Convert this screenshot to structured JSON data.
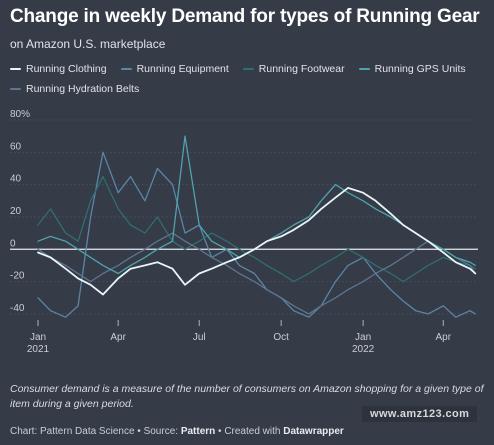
{
  "title": "Change in weekly Demand for types of Running Gear",
  "subtitle": "on Amazon U.S. marketplace",
  "note": "Consumer demand is a measure of the number of consumers on Amazon shopping for a given type of item during a given period.",
  "footer": {
    "chart_prefix": "Chart: Pattern Data Science • Source: ",
    "source": "Pattern",
    "created_prefix": " • Created with ",
    "tool": "Datawrapper"
  },
  "watermark": "www.amz123.com",
  "chart_data": {
    "type": "line",
    "ylim": [
      -45,
      80
    ],
    "y_ticks": [
      {
        "value": 80,
        "label": "80%"
      },
      {
        "value": 60,
        "label": "60"
      },
      {
        "value": 40,
        "label": "40"
      },
      {
        "value": 20,
        "label": "20"
      },
      {
        "value": 0,
        "label": "0"
      },
      {
        "value": -20,
        "label": "-20"
      },
      {
        "value": -40,
        "label": "-40"
      }
    ],
    "x_range": [
      "2021-01-01",
      "2022-05-10"
    ],
    "x_ticks": [
      {
        "date": "2021-01-01",
        "label": "Jan",
        "sublabel": "2021"
      },
      {
        "date": "2021-04-01",
        "label": "Apr",
        "sublabel": ""
      },
      {
        "date": "2021-07-01",
        "label": "Jul",
        "sublabel": ""
      },
      {
        "date": "2021-10-01",
        "label": "Oct",
        "sublabel": ""
      },
      {
        "date": "2022-01-01",
        "label": "Jan",
        "sublabel": "2022"
      },
      {
        "date": "2022-04-01",
        "label": "Apr",
        "sublabel": ""
      }
    ],
    "series": [
      {
        "name": "Running Clothing",
        "color": "#e8f6fb",
        "points": [
          [
            "2021-01-01",
            -2
          ],
          [
            "2021-01-15",
            -5
          ],
          [
            "2021-02-01",
            -12
          ],
          [
            "2021-02-15",
            -18
          ],
          [
            "2021-03-01",
            -22
          ],
          [
            "2021-03-15",
            -28
          ],
          [
            "2021-04-01",
            -18
          ],
          [
            "2021-04-15",
            -12
          ],
          [
            "2021-05-01",
            -10
          ],
          [
            "2021-05-15",
            -8
          ],
          [
            "2021-06-01",
            -12
          ],
          [
            "2021-06-15",
            -22
          ],
          [
            "2021-07-01",
            -15
          ],
          [
            "2021-07-15",
            -12
          ],
          [
            "2021-08-01",
            -8
          ],
          [
            "2021-08-15",
            -5
          ],
          [
            "2021-09-01",
            0
          ],
          [
            "2021-09-15",
            5
          ],
          [
            "2021-10-01",
            8
          ],
          [
            "2021-10-15",
            12
          ],
          [
            "2021-11-01",
            18
          ],
          [
            "2021-11-15",
            25
          ],
          [
            "2021-12-01",
            32
          ],
          [
            "2021-12-15",
            38
          ],
          [
            "2022-01-01",
            35
          ],
          [
            "2022-01-15",
            30
          ],
          [
            "2022-02-01",
            22
          ],
          [
            "2022-02-15",
            15
          ],
          [
            "2022-03-01",
            10
          ],
          [
            "2022-03-15",
            5
          ],
          [
            "2022-04-01",
            -2
          ],
          [
            "2022-04-15",
            -8
          ],
          [
            "2022-05-01",
            -12
          ],
          [
            "2022-05-07",
            -15
          ]
        ]
      },
      {
        "name": "Running Equipment",
        "color": "#5b86a6",
        "points": [
          [
            "2021-01-01",
            -30
          ],
          [
            "2021-01-15",
            -38
          ],
          [
            "2021-02-01",
            -42
          ],
          [
            "2021-02-15",
            -35
          ],
          [
            "2021-03-01",
            20
          ],
          [
            "2021-03-15",
            60
          ],
          [
            "2021-04-01",
            35
          ],
          [
            "2021-04-15",
            45
          ],
          [
            "2021-05-01",
            30
          ],
          [
            "2021-05-15",
            50
          ],
          [
            "2021-06-01",
            40
          ],
          [
            "2021-06-15",
            10
          ],
          [
            "2021-07-01",
            15
          ],
          [
            "2021-07-15",
            -5
          ],
          [
            "2021-08-01",
            0
          ],
          [
            "2021-08-15",
            -10
          ],
          [
            "2021-09-01",
            -15
          ],
          [
            "2021-09-15",
            -25
          ],
          [
            "2021-10-01",
            -30
          ],
          [
            "2021-10-15",
            -38
          ],
          [
            "2021-11-01",
            -42
          ],
          [
            "2021-11-15",
            -35
          ],
          [
            "2021-12-01",
            -20
          ],
          [
            "2021-12-15",
            -10
          ],
          [
            "2022-01-01",
            -5
          ],
          [
            "2022-01-15",
            -15
          ],
          [
            "2022-02-01",
            -25
          ],
          [
            "2022-02-15",
            -32
          ],
          [
            "2022-03-01",
            -38
          ],
          [
            "2022-03-15",
            -40
          ],
          [
            "2022-04-01",
            -35
          ],
          [
            "2022-04-15",
            -42
          ],
          [
            "2022-05-01",
            -38
          ],
          [
            "2022-05-07",
            -40
          ]
        ]
      },
      {
        "name": "Running Footwear",
        "color": "#2f6f6f",
        "points": [
          [
            "2021-01-01",
            15
          ],
          [
            "2021-01-15",
            25
          ],
          [
            "2021-02-01",
            10
          ],
          [
            "2021-02-15",
            5
          ],
          [
            "2021-03-01",
            30
          ],
          [
            "2021-03-15",
            45
          ],
          [
            "2021-04-01",
            25
          ],
          [
            "2021-04-15",
            15
          ],
          [
            "2021-05-01",
            10
          ],
          [
            "2021-05-15",
            20
          ],
          [
            "2021-06-01",
            5
          ],
          [
            "2021-06-15",
            0
          ],
          [
            "2021-07-01",
            5
          ],
          [
            "2021-07-15",
            10
          ],
          [
            "2021-08-01",
            5
          ],
          [
            "2021-08-15",
            0
          ],
          [
            "2021-09-01",
            -5
          ],
          [
            "2021-09-15",
            -10
          ],
          [
            "2021-10-01",
            -15
          ],
          [
            "2021-10-15",
            -20
          ],
          [
            "2021-11-01",
            -15
          ],
          [
            "2021-11-15",
            -10
          ],
          [
            "2021-12-01",
            -5
          ],
          [
            "2021-12-15",
            0
          ],
          [
            "2022-01-01",
            -5
          ],
          [
            "2022-01-15",
            -10
          ],
          [
            "2022-02-01",
            -15
          ],
          [
            "2022-02-15",
            -20
          ],
          [
            "2022-03-01",
            -15
          ],
          [
            "2022-03-15",
            -10
          ],
          [
            "2022-04-01",
            -5
          ],
          [
            "2022-04-15",
            -8
          ],
          [
            "2022-05-01",
            -10
          ],
          [
            "2022-05-07",
            -12
          ]
        ]
      },
      {
        "name": "Running GPS Units",
        "color": "#4ea3ad",
        "points": [
          [
            "2021-01-01",
            5
          ],
          [
            "2021-01-15",
            8
          ],
          [
            "2021-02-01",
            5
          ],
          [
            "2021-02-15",
            0
          ],
          [
            "2021-03-01",
            -5
          ],
          [
            "2021-03-15",
            -10
          ],
          [
            "2021-04-01",
            -15
          ],
          [
            "2021-04-15",
            -10
          ],
          [
            "2021-05-01",
            -5
          ],
          [
            "2021-05-15",
            0
          ],
          [
            "2021-06-01",
            5
          ],
          [
            "2021-06-15",
            70
          ],
          [
            "2021-07-01",
            15
          ],
          [
            "2021-07-15",
            5
          ],
          [
            "2021-08-01",
            0
          ],
          [
            "2021-08-15",
            -5
          ],
          [
            "2021-09-01",
            0
          ],
          [
            "2021-09-15",
            5
          ],
          [
            "2021-10-01",
            10
          ],
          [
            "2021-10-15",
            15
          ],
          [
            "2021-11-01",
            20
          ],
          [
            "2021-11-15",
            30
          ],
          [
            "2021-12-01",
            40
          ],
          [
            "2021-12-15",
            35
          ],
          [
            "2022-01-01",
            30
          ],
          [
            "2022-01-15",
            25
          ],
          [
            "2022-02-01",
            20
          ],
          [
            "2022-02-15",
            15
          ],
          [
            "2022-03-01",
            10
          ],
          [
            "2022-03-15",
            5
          ],
          [
            "2022-04-01",
            0
          ],
          [
            "2022-04-15",
            -5
          ],
          [
            "2022-05-01",
            -8
          ],
          [
            "2022-05-07",
            -10
          ]
        ]
      },
      {
        "name": "Running Hydration Belts",
        "color": "#5d7590",
        "points": [
          [
            "2021-01-01",
            0
          ],
          [
            "2021-01-15",
            -5
          ],
          [
            "2021-02-01",
            -10
          ],
          [
            "2021-02-15",
            -15
          ],
          [
            "2021-03-01",
            -20
          ],
          [
            "2021-03-15",
            -15
          ],
          [
            "2021-04-01",
            -10
          ],
          [
            "2021-04-15",
            -5
          ],
          [
            "2021-05-01",
            0
          ],
          [
            "2021-05-15",
            5
          ],
          [
            "2021-06-01",
            10
          ],
          [
            "2021-06-15",
            5
          ],
          [
            "2021-07-01",
            0
          ],
          [
            "2021-07-15",
            -5
          ],
          [
            "2021-08-01",
            -10
          ],
          [
            "2021-08-15",
            -15
          ],
          [
            "2021-09-01",
            -20
          ],
          [
            "2021-09-15",
            -25
          ],
          [
            "2021-10-01",
            -30
          ],
          [
            "2021-10-15",
            -35
          ],
          [
            "2021-11-01",
            -40
          ],
          [
            "2021-11-15",
            -35
          ],
          [
            "2021-12-01",
            -30
          ],
          [
            "2021-12-15",
            -25
          ],
          [
            "2022-01-01",
            -20
          ],
          [
            "2022-01-15",
            -15
          ],
          [
            "2022-02-01",
            -10
          ],
          [
            "2022-02-15",
            -5
          ],
          [
            "2022-03-01",
            0
          ],
          [
            "2022-03-15",
            5
          ],
          [
            "2022-04-01",
            0
          ],
          [
            "2022-04-15",
            -5
          ],
          [
            "2022-05-01",
            -10
          ],
          [
            "2022-05-07",
            -15
          ]
        ]
      }
    ]
  }
}
